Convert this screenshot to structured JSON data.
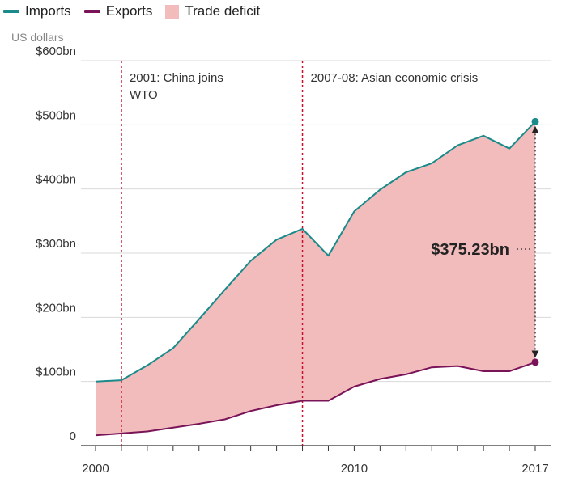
{
  "legend": {
    "imports": "Imports",
    "exports": "Exports",
    "deficit": "Trade deficit"
  },
  "unit_label": "US dollars",
  "colors": {
    "imports": "#1a8a8a",
    "exports": "#7a1458",
    "deficit": "#f2bcbc",
    "event_line": "#c8102e",
    "grid": "#d9d9d9"
  },
  "chart_data": {
    "type": "area",
    "title": "",
    "xlabel": "",
    "ylabel": "US dollars",
    "xlim": [
      2000,
      2017
    ],
    "ylim": [
      0,
      600
    ],
    "y_ticks": [
      {
        "value": 0,
        "label": "0"
      },
      {
        "value": 100,
        "label": "$100bn"
      },
      {
        "value": 200,
        "label": "$200bn"
      },
      {
        "value": 300,
        "label": "$300bn"
      },
      {
        "value": 400,
        "label": "$400bn"
      },
      {
        "value": 500,
        "label": "$500bn"
      },
      {
        "value": 600,
        "label": "$600bn"
      }
    ],
    "x_ticks": [
      {
        "value": 2000,
        "label": "2000"
      },
      {
        "value": 2010,
        "label": "2010"
      },
      {
        "value": 2017,
        "label": "2017"
      }
    ],
    "x": [
      2000,
      2001,
      2002,
      2003,
      2004,
      2005,
      2006,
      2007,
      2008,
      2009,
      2010,
      2011,
      2012,
      2013,
      2014,
      2015,
      2016,
      2017
    ],
    "series": [
      {
        "name": "Imports",
        "values": [
          100,
          102,
          125,
          152,
          197,
          243,
          288,
          321,
          338,
          296,
          365,
          399,
          426,
          440,
          468,
          483,
          463,
          505
        ]
      },
      {
        "name": "Exports",
        "values": [
          16,
          19,
          22,
          28,
          34,
          41,
          54,
          63,
          70,
          70,
          92,
          104,
          111,
          122,
          124,
          116,
          116,
          130
        ]
      }
    ],
    "events": [
      {
        "x": 2001,
        "label_lines": [
          "2001: China joins",
          "WTO"
        ]
      },
      {
        "x": 2008,
        "label_lines": [
          "2007-08: Asian economic crisis"
        ]
      }
    ],
    "annotation": {
      "x": 2017,
      "label": "$375.23bn"
    },
    "legend_position": "top-left",
    "grid": true
  }
}
